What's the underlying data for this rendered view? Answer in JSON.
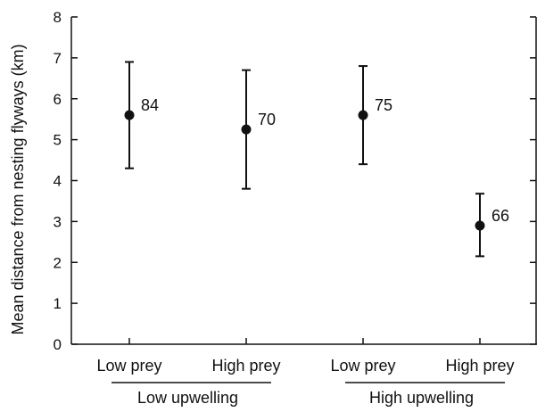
{
  "chart_data": {
    "type": "scatter",
    "title": "",
    "ylabel": "Mean distance from nesting flyways (km)",
    "xlabel": "",
    "ylim": [
      0,
      8
    ],
    "yticks": [
      "0",
      "1",
      "2",
      "3",
      "4",
      "5",
      "6",
      "7",
      "8"
    ],
    "grid": false,
    "categories": [
      "Low prey",
      "High prey",
      "Low prey",
      "High prey"
    ],
    "groups": [
      {
        "label": "Low upwelling",
        "categories": [
          0,
          1
        ]
      },
      {
        "label": "High upwelling",
        "categories": [
          2,
          3
        ]
      }
    ],
    "points": [
      {
        "category": "Low prey",
        "group": "Low upwelling",
        "mean": 5.6,
        "lower": 4.3,
        "upper": 6.9,
        "n": "84"
      },
      {
        "category": "High prey",
        "group": "Low upwelling",
        "mean": 5.25,
        "lower": 3.8,
        "upper": 6.7,
        "n": "70"
      },
      {
        "category": "Low prey",
        "group": "High upwelling",
        "mean": 5.6,
        "lower": 4.4,
        "upper": 6.8,
        "n": "75"
      },
      {
        "category": "High prey",
        "group": "High upwelling",
        "mean": 2.9,
        "lower": 2.15,
        "upper": 3.68,
        "n": "66"
      }
    ],
    "colors": {
      "marker": "#111111",
      "axis": "#111111"
    }
  }
}
